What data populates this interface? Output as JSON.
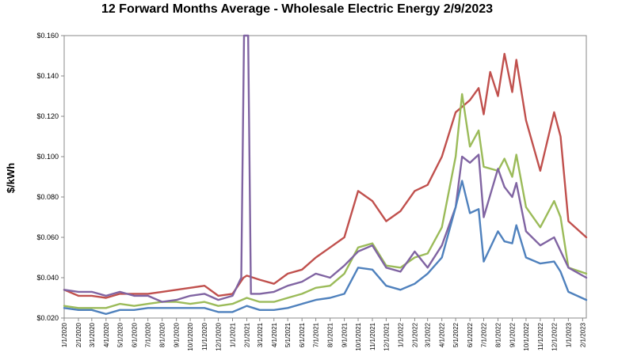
{
  "chart_data": {
    "type": "line",
    "title": "12 Forward Months Average - Wholesale Electric Energy 2/9/2023",
    "ylabel": "$/kWh",
    "xlabel": "",
    "ylim": [
      0.02,
      0.16
    ],
    "yticks": [
      0.02,
      0.04,
      0.06,
      0.08,
      0.1,
      0.12,
      0.14,
      0.16
    ],
    "ytick_labels": [
      "$0.020",
      "$0.040",
      "$0.060",
      "$0.080",
      "$0.100",
      "$0.120",
      "$0.140",
      "$0.160"
    ],
    "xlim": [
      "2020-01-01",
      "2023-02-09"
    ],
    "xtick_labels": [
      "1/1/2020",
      "2/1/2020",
      "3/1/2020",
      "4/1/2020",
      "5/1/2020",
      "6/1/2020",
      "7/1/2020",
      "8/1/2020",
      "9/1/2020",
      "10/1/2020",
      "11/1/2020",
      "12/1/2020",
      "1/1/2021",
      "2/1/2021",
      "3/1/2021",
      "4/1/2021",
      "5/1/2021",
      "6/1/2021",
      "7/1/2021",
      "8/1/2021",
      "9/1/2021",
      "10/1/2021",
      "11/1/2021",
      "12/1/2021",
      "1/1/2022",
      "2/1/2022",
      "3/1/2022",
      "4/1/2022",
      "5/1/2022",
      "6/1/2022",
      "7/1/2022",
      "8/1/2022",
      "9/1/2022",
      "10/1/2022",
      "11/1/2022",
      "12/1/2022",
      "1/1/2023",
      "2/1/2023"
    ],
    "grid": false,
    "legend": "none",
    "series": [
      {
        "color": "#c0504d",
        "points": [
          [
            "2020-01-01",
            0.034
          ],
          [
            "2020-02-01",
            0.031
          ],
          [
            "2020-03-01",
            0.031
          ],
          [
            "2020-04-01",
            0.03
          ],
          [
            "2020-05-01",
            0.032
          ],
          [
            "2020-06-01",
            0.032
          ],
          [
            "2020-07-01",
            0.032
          ],
          [
            "2020-08-01",
            0.033
          ],
          [
            "2020-09-01",
            0.034
          ],
          [
            "2020-10-01",
            0.035
          ],
          [
            "2020-11-01",
            0.036
          ],
          [
            "2020-12-01",
            0.031
          ],
          [
            "2021-01-01",
            0.032
          ],
          [
            "2021-01-25",
            0.04
          ],
          [
            "2021-02-01",
            0.041
          ],
          [
            "2021-03-01",
            0.039
          ],
          [
            "2021-04-01",
            0.037
          ],
          [
            "2021-05-01",
            0.042
          ],
          [
            "2021-06-01",
            0.044
          ],
          [
            "2021-07-01",
            0.05
          ],
          [
            "2021-08-01",
            0.055
          ],
          [
            "2021-09-01",
            0.06
          ],
          [
            "2021-10-01",
            0.083
          ],
          [
            "2021-11-01",
            0.078
          ],
          [
            "2021-12-01",
            0.068
          ],
          [
            "2022-01-01",
            0.073
          ],
          [
            "2022-02-01",
            0.083
          ],
          [
            "2022-03-01",
            0.086
          ],
          [
            "2022-04-01",
            0.1
          ],
          [
            "2022-05-01",
            0.122
          ],
          [
            "2022-06-01",
            0.128
          ],
          [
            "2022-06-20",
            0.134
          ],
          [
            "2022-07-01",
            0.121
          ],
          [
            "2022-07-15",
            0.142
          ],
          [
            "2022-08-01",
            0.13
          ],
          [
            "2022-08-15",
            0.151
          ],
          [
            "2022-09-01",
            0.132
          ],
          [
            "2022-09-10",
            0.148
          ],
          [
            "2022-10-01",
            0.118
          ],
          [
            "2022-11-01",
            0.093
          ],
          [
            "2022-12-01",
            0.122
          ],
          [
            "2022-12-15",
            0.11
          ],
          [
            "2023-01-01",
            0.068
          ],
          [
            "2023-02-09",
            0.06
          ]
        ]
      },
      {
        "color": "#9bbb59",
        "points": [
          [
            "2020-01-01",
            0.026
          ],
          [
            "2020-02-01",
            0.025
          ],
          [
            "2020-03-01",
            0.025
          ],
          [
            "2020-04-01",
            0.025
          ],
          [
            "2020-05-01",
            0.027
          ],
          [
            "2020-06-01",
            0.026
          ],
          [
            "2020-07-01",
            0.027
          ],
          [
            "2020-08-01",
            0.028
          ],
          [
            "2020-09-01",
            0.028
          ],
          [
            "2020-10-01",
            0.027
          ],
          [
            "2020-11-01",
            0.028
          ],
          [
            "2020-12-01",
            0.026
          ],
          [
            "2021-01-01",
            0.027
          ],
          [
            "2021-02-01",
            0.03
          ],
          [
            "2021-03-01",
            0.028
          ],
          [
            "2021-04-01",
            0.028
          ],
          [
            "2021-05-01",
            0.03
          ],
          [
            "2021-06-01",
            0.032
          ],
          [
            "2021-07-01",
            0.035
          ],
          [
            "2021-08-01",
            0.036
          ],
          [
            "2021-09-01",
            0.042
          ],
          [
            "2021-10-01",
            0.055
          ],
          [
            "2021-11-01",
            0.057
          ],
          [
            "2021-12-01",
            0.046
          ],
          [
            "2022-01-01",
            0.045
          ],
          [
            "2022-02-01",
            0.05
          ],
          [
            "2022-03-01",
            0.052
          ],
          [
            "2022-04-01",
            0.065
          ],
          [
            "2022-05-01",
            0.1
          ],
          [
            "2022-05-15",
            0.131
          ],
          [
            "2022-06-01",
            0.105
          ],
          [
            "2022-06-20",
            0.113
          ],
          [
            "2022-07-01",
            0.095
          ],
          [
            "2022-08-01",
            0.093
          ],
          [
            "2022-08-15",
            0.099
          ],
          [
            "2022-09-01",
            0.09
          ],
          [
            "2022-09-10",
            0.101
          ],
          [
            "2022-10-01",
            0.075
          ],
          [
            "2022-11-01",
            0.065
          ],
          [
            "2022-12-01",
            0.078
          ],
          [
            "2022-12-15",
            0.07
          ],
          [
            "2023-01-01",
            0.045
          ],
          [
            "2023-02-09",
            0.042
          ]
        ]
      },
      {
        "color": "#8064a2",
        "points": [
          [
            "2020-01-01",
            0.034
          ],
          [
            "2020-02-01",
            0.033
          ],
          [
            "2020-03-01",
            0.033
          ],
          [
            "2020-04-01",
            0.031
          ],
          [
            "2020-05-01",
            0.033
          ],
          [
            "2020-06-01",
            0.031
          ],
          [
            "2020-07-01",
            0.031
          ],
          [
            "2020-08-01",
            0.028
          ],
          [
            "2020-09-01",
            0.029
          ],
          [
            "2020-10-01",
            0.031
          ],
          [
            "2020-11-01",
            0.032
          ],
          [
            "2020-12-01",
            0.029
          ],
          [
            "2021-01-01",
            0.031
          ],
          [
            "2021-01-20",
            0.04
          ],
          [
            "2021-01-26",
            0.16
          ],
          [
            "2021-02-04",
            0.16
          ],
          [
            "2021-02-10",
            0.032
          ],
          [
            "2021-03-01",
            0.032
          ],
          [
            "2021-04-01",
            0.033
          ],
          [
            "2021-05-01",
            0.036
          ],
          [
            "2021-06-01",
            0.038
          ],
          [
            "2021-07-01",
            0.042
          ],
          [
            "2021-08-01",
            0.04
          ],
          [
            "2021-09-01",
            0.046
          ],
          [
            "2021-10-01",
            0.053
          ],
          [
            "2021-11-01",
            0.056
          ],
          [
            "2021-12-01",
            0.045
          ],
          [
            "2022-01-01",
            0.043
          ],
          [
            "2022-02-01",
            0.053
          ],
          [
            "2022-03-01",
            0.045
          ],
          [
            "2022-04-01",
            0.056
          ],
          [
            "2022-05-01",
            0.075
          ],
          [
            "2022-05-15",
            0.1
          ],
          [
            "2022-06-01",
            0.097
          ],
          [
            "2022-06-20",
            0.101
          ],
          [
            "2022-07-01",
            0.07
          ],
          [
            "2022-08-01",
            0.094
          ],
          [
            "2022-08-15",
            0.085
          ],
          [
            "2022-09-01",
            0.08
          ],
          [
            "2022-09-10",
            0.087
          ],
          [
            "2022-10-01",
            0.063
          ],
          [
            "2022-11-01",
            0.056
          ],
          [
            "2022-12-01",
            0.06
          ],
          [
            "2023-01-01",
            0.045
          ],
          [
            "2023-02-09",
            0.04
          ]
        ]
      },
      {
        "color": "#4f81bd",
        "points": [
          [
            "2020-01-01",
            0.025
          ],
          [
            "2020-02-01",
            0.024
          ],
          [
            "2020-03-01",
            0.024
          ],
          [
            "2020-04-01",
            0.022
          ],
          [
            "2020-05-01",
            0.024
          ],
          [
            "2020-06-01",
            0.024
          ],
          [
            "2020-07-01",
            0.025
          ],
          [
            "2020-08-01",
            0.025
          ],
          [
            "2020-09-01",
            0.025
          ],
          [
            "2020-10-01",
            0.025
          ],
          [
            "2020-11-01",
            0.025
          ],
          [
            "2020-12-01",
            0.023
          ],
          [
            "2021-01-01",
            0.023
          ],
          [
            "2021-02-01",
            0.026
          ],
          [
            "2021-03-01",
            0.024
          ],
          [
            "2021-04-01",
            0.024
          ],
          [
            "2021-05-01",
            0.025
          ],
          [
            "2021-06-01",
            0.027
          ],
          [
            "2021-07-01",
            0.029
          ],
          [
            "2021-08-01",
            0.03
          ],
          [
            "2021-09-01",
            0.032
          ],
          [
            "2021-10-01",
            0.045
          ],
          [
            "2021-11-01",
            0.044
          ],
          [
            "2021-12-01",
            0.036
          ],
          [
            "2022-01-01",
            0.034
          ],
          [
            "2022-02-01",
            0.037
          ],
          [
            "2022-03-01",
            0.042
          ],
          [
            "2022-04-01",
            0.05
          ],
          [
            "2022-05-01",
            0.075
          ],
          [
            "2022-05-15",
            0.088
          ],
          [
            "2022-06-01",
            0.072
          ],
          [
            "2022-06-20",
            0.074
          ],
          [
            "2022-07-01",
            0.048
          ],
          [
            "2022-08-01",
            0.063
          ],
          [
            "2022-08-15",
            0.058
          ],
          [
            "2022-09-01",
            0.057
          ],
          [
            "2022-09-10",
            0.066
          ],
          [
            "2022-10-01",
            0.05
          ],
          [
            "2022-11-01",
            0.047
          ],
          [
            "2022-12-01",
            0.048
          ],
          [
            "2022-12-15",
            0.043
          ],
          [
            "2023-01-01",
            0.033
          ],
          [
            "2023-02-09",
            0.029
          ]
        ]
      }
    ]
  }
}
